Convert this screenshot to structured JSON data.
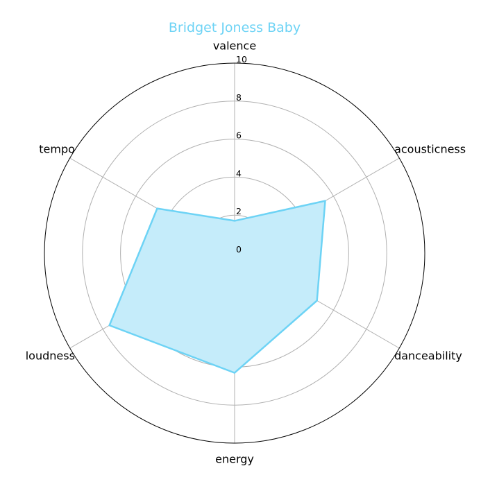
{
  "chart_data": {
    "type": "radar",
    "title": "Bridget Joness Baby",
    "axes": [
      "valence",
      "acousticness",
      "danceability",
      "energy",
      "loudness",
      "tempo"
    ],
    "values": [
      1.7,
      5.5,
      5.0,
      6.3,
      7.6,
      4.7
    ],
    "rmax": 10,
    "rticks": [
      0,
      2,
      4,
      6,
      8,
      10
    ],
    "grid": true,
    "colors": {
      "title": "#6dd3f5",
      "line": "#6dd3f5",
      "fill": "#c5ecfa",
      "grid": "#b0b0b0",
      "outer": "#000000"
    }
  }
}
